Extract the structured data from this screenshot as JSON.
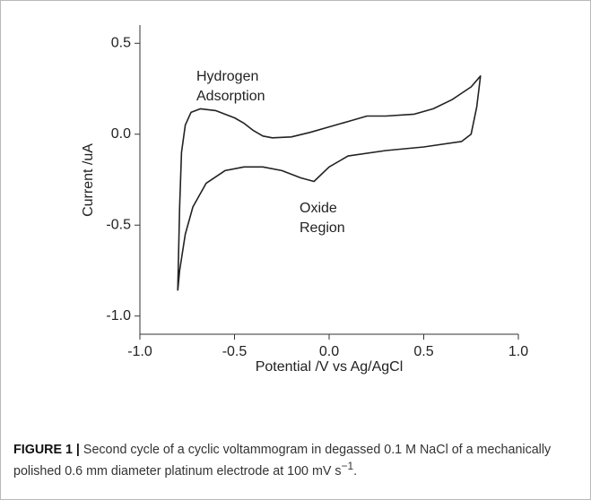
{
  "chart_data": {
    "type": "line",
    "x_label": "Potential /V vs Ag/AgCl",
    "y_label": "Current /uA",
    "annotations": [
      [
        "Hydrogen",
        "Adsorption"
      ],
      [
        "Oxide",
        "Region"
      ]
    ],
    "x": [
      -0.8,
      -0.79,
      -0.78,
      -0.76,
      -0.73,
      -0.68,
      -0.6,
      -0.5,
      -0.45,
      -0.4,
      -0.35,
      -0.3,
      -0.2,
      -0.1,
      0.0,
      0.1,
      0.2,
      0.3,
      0.45,
      0.55,
      0.65,
      0.75,
      0.8,
      0.78,
      0.75,
      0.7,
      0.5,
      0.3,
      0.1,
      0.0,
      -0.08,
      -0.15,
      -0.25,
      -0.35,
      -0.45,
      -0.55,
      -0.65,
      -0.72,
      -0.76,
      -0.79,
      -0.8
    ],
    "values": [
      -0.86,
      -0.4,
      -0.1,
      0.05,
      0.12,
      0.14,
      0.13,
      0.09,
      0.06,
      0.02,
      -0.01,
      -0.02,
      -0.015,
      0.01,
      0.04,
      0.07,
      0.1,
      0.1,
      0.11,
      0.14,
      0.19,
      0.26,
      0.32,
      0.15,
      0.0,
      -0.04,
      -0.07,
      -0.09,
      -0.12,
      -0.18,
      -0.26,
      -0.24,
      -0.2,
      -0.18,
      -0.18,
      -0.2,
      -0.27,
      -0.4,
      -0.55,
      -0.75,
      -0.86
    ],
    "color": "#222222",
    "xlim": [
      -1.0,
      1.0
    ],
    "ylim": [
      -1.1,
      0.6
    ],
    "xticks": [
      {
        "value": -1.0,
        "label": "-1.0"
      },
      {
        "value": -0.5,
        "label": "-0.5"
      },
      {
        "value": 0.0,
        "label": "0.0"
      },
      {
        "value": 0.5,
        "label": "0.5"
      },
      {
        "value": 1.0,
        "label": "1.0"
      }
    ],
    "yticks": [
      {
        "value": -1.0,
        "label": "-1.0"
      },
      {
        "value": -0.5,
        "label": "-0.5"
      },
      {
        "value": 0.0,
        "label": "0.0"
      },
      {
        "value": 0.5,
        "label": "0.5"
      }
    ]
  },
  "caption": {
    "label": "FIGURE 1 |",
    "text": "Second cycle of a cyclic voltammogram in degassed 0.1 M NaCl of a mechanically polished 0.6 mm diameter platinum electrode at 100 mV s",
    "superscript": "−1",
    "end": "."
  }
}
